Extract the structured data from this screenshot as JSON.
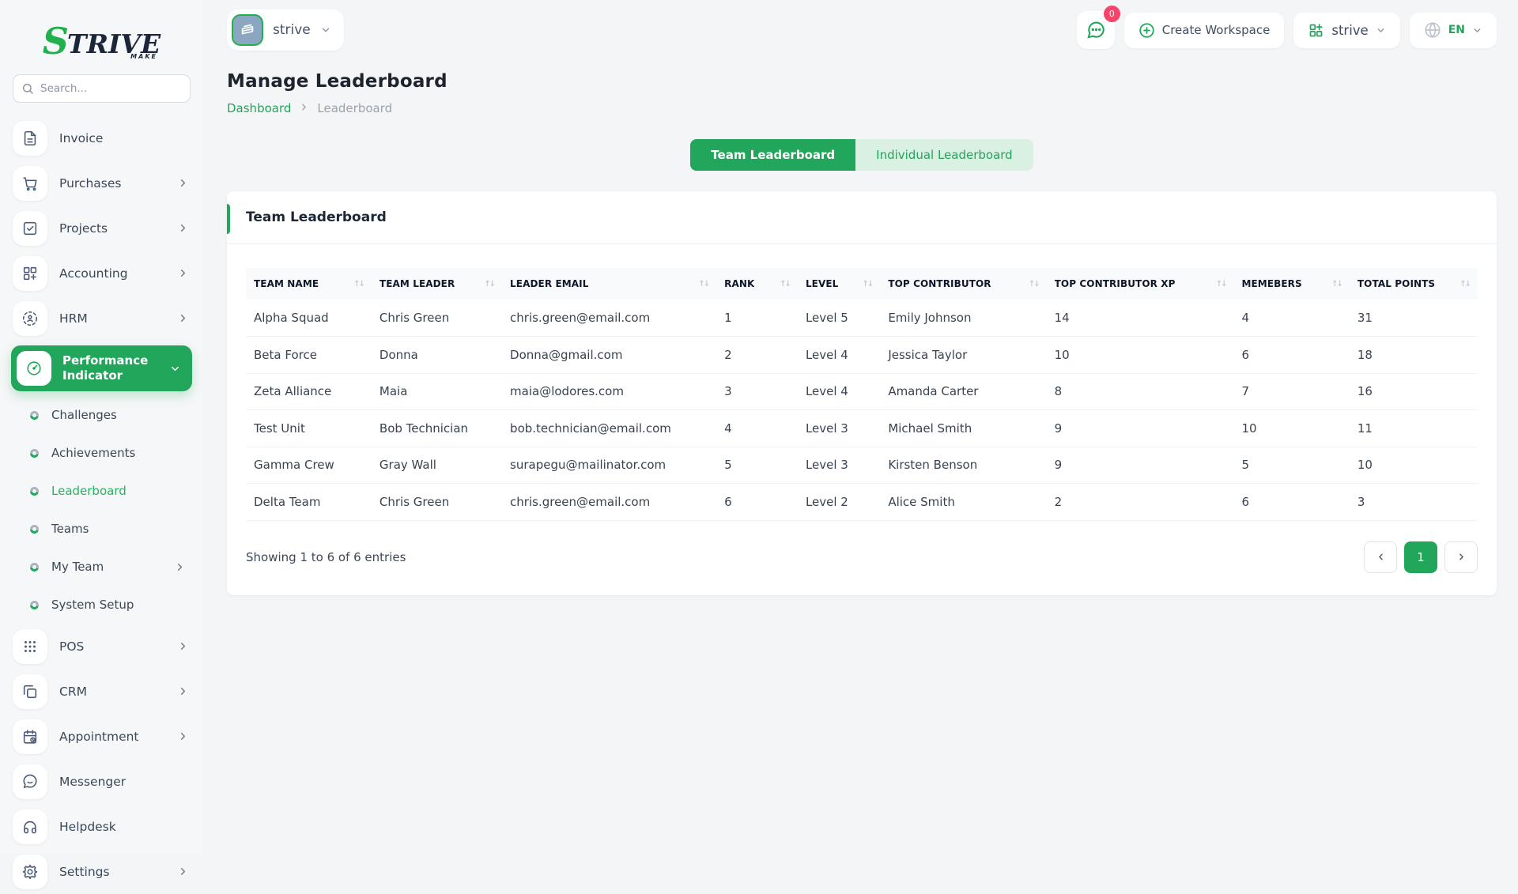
{
  "brand": {
    "logo_s": "S",
    "logo_rest": "TRIVE",
    "logo_sub": "MAKE"
  },
  "colors": {
    "accent_green": "#21a65b",
    "tab_inactive_bg": "#d9f0e2",
    "badge_pink": "#f8436b"
  },
  "sidebar": {
    "search_placeholder": "Search...",
    "items": [
      {
        "kind": "link",
        "icon": "invoice-icon",
        "label": "Invoice",
        "chevron": false
      },
      {
        "kind": "link",
        "icon": "purchases-icon",
        "label": "Purchases",
        "chevron": true
      },
      {
        "kind": "link",
        "icon": "projects-icon",
        "label": "Projects",
        "chevron": true
      },
      {
        "kind": "link",
        "icon": "accounting-icon",
        "label": "Accounting",
        "chevron": true
      },
      {
        "kind": "link",
        "icon": "hrm-icon",
        "label": "HRM",
        "chevron": true
      },
      {
        "kind": "active",
        "icon": "performance-indicator-icon",
        "label": "Performance Indicator"
      },
      {
        "kind": "sub",
        "label": "Challenges",
        "active": false,
        "chevron": false
      },
      {
        "kind": "sub",
        "label": "Achievements",
        "active": false,
        "chevron": false
      },
      {
        "kind": "sub",
        "label": "Leaderboard",
        "active": true,
        "chevron": false
      },
      {
        "kind": "sub",
        "label": "Teams",
        "active": false,
        "chevron": false
      },
      {
        "kind": "sub",
        "label": "My Team",
        "active": false,
        "chevron": true
      },
      {
        "kind": "sub",
        "label": "System Setup",
        "active": false,
        "chevron": false
      },
      {
        "kind": "link",
        "icon": "pos-icon",
        "label": "POS",
        "chevron": true
      },
      {
        "kind": "link",
        "icon": "crm-icon",
        "label": "CRM",
        "chevron": true
      },
      {
        "kind": "link",
        "icon": "appointment-icon",
        "label": "Appointment",
        "chevron": true
      },
      {
        "kind": "link",
        "icon": "messenger-icon",
        "label": "Messenger",
        "chevron": false
      },
      {
        "kind": "link",
        "icon": "helpdesk-icon",
        "label": "Helpdesk",
        "chevron": false
      },
      {
        "kind": "link",
        "icon": "settings-icon",
        "label": "Settings",
        "chevron": true
      }
    ]
  },
  "topbar": {
    "workspace_name": "strive",
    "chat_badge": "0",
    "create_label": "Create Workspace",
    "org_name": "strive",
    "language": "EN"
  },
  "page": {
    "title": "Manage Leaderboard",
    "breadcrumb_home": "Dashboard",
    "breadcrumb_current": "Leaderboard"
  },
  "tabs": {
    "team": "Team Leaderboard",
    "individual": "Individual Leaderboard"
  },
  "card": {
    "title": "Team Leaderboard"
  },
  "table": {
    "columns": [
      "TEAM NAME",
      "TEAM LEADER",
      "LEADER EMAIL",
      "RANK",
      "LEVEL",
      "TOP CONTRIBUTOR",
      "TOP CONTRIBUTOR XP",
      "MEMEBERS",
      "TOTAL POINTS"
    ],
    "rows": [
      [
        "Alpha Squad",
        "Chris Green",
        "chris.green@email.com",
        "1",
        "Level 5",
        "Emily Johnson",
        "14",
        "4",
        "31"
      ],
      [
        "Beta Force",
        "Donna",
        "Donna@gmail.com",
        "2",
        "Level 4",
        "Jessica Taylor",
        "10",
        "6",
        "18"
      ],
      [
        "Zeta Alliance",
        "Maia",
        "maia@lodores.com",
        "3",
        "Level 4",
        "Amanda Carter",
        "8",
        "7",
        "16"
      ],
      [
        "Test Unit",
        "Bob Technician",
        "bob.technician@email.com",
        "4",
        "Level 3",
        "Michael Smith",
        "9",
        "10",
        "11"
      ],
      [
        "Gamma Crew",
        "Gray Wall",
        "surapegu@mailinator.com",
        "5",
        "Level 3",
        "Kirsten Benson",
        "9",
        "5",
        "10"
      ],
      [
        "Delta Team",
        "Chris Green",
        "chris.green@email.com",
        "6",
        "Level 2",
        "Alice Smith",
        "2",
        "6",
        "3"
      ]
    ],
    "footer_text": "Showing 1 to 6 of 6 entries",
    "pagination": {
      "prev": "‹",
      "current_page": "1",
      "next": "›"
    }
  }
}
